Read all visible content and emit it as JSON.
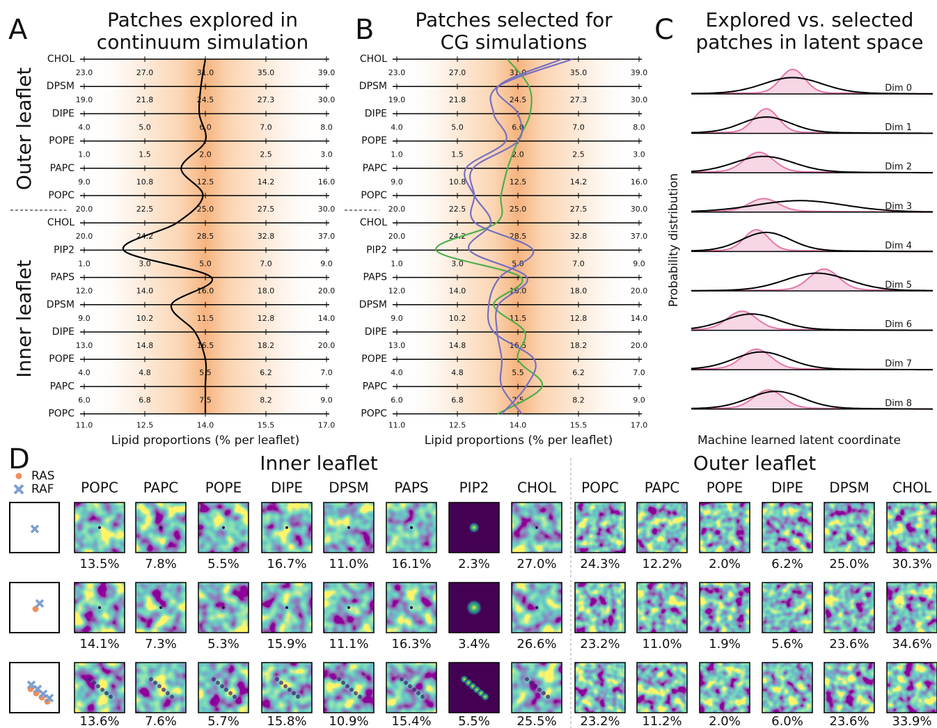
{
  "panel_a": {
    "letter": "A",
    "title": [
      "Patches explored in",
      "continuum simulation"
    ],
    "leaflets": [
      "Outer leaflet",
      "Inner leaflet"
    ],
    "xlabel": "Lipid proportions (% per leaflet)",
    "axes": [
      {
        "name": "CHOL",
        "lim": [
          23,
          39
        ],
        "ticks": [
          {
            "value": 23,
            "label": "23.0"
          },
          {
            "value": 27,
            "label": "27.0"
          },
          {
            "value": 31,
            "label": "31.0"
          },
          {
            "value": 35,
            "label": "35.0"
          },
          {
            "value": 39,
            "label": "39.0"
          }
        ]
      },
      {
        "name": "DPSM",
        "lim": [
          19,
          30
        ],
        "ticks": [
          {
            "value": 19,
            "label": "19.0"
          },
          {
            "value": 21.75,
            "label": "21.8"
          },
          {
            "value": 24.5,
            "label": "24.5"
          },
          {
            "value": 27.25,
            "label": "27.3"
          },
          {
            "value": 30,
            "label": "30.0"
          }
        ]
      },
      {
        "name": "DIPE",
        "lim": [
          4,
          8
        ],
        "ticks": [
          {
            "value": 4,
            "label": "4.0"
          },
          {
            "value": 5,
            "label": "5.0"
          },
          {
            "value": 6,
            "label": "6.0"
          },
          {
            "value": 7,
            "label": "7.0"
          },
          {
            "value": 8,
            "label": "8.0"
          }
        ]
      },
      {
        "name": "POPE",
        "lim": [
          1,
          3
        ],
        "ticks": [
          {
            "value": 1,
            "label": "1.0"
          },
          {
            "value": 1.5,
            "label": "1.5"
          },
          {
            "value": 2,
            "label": "2.0"
          },
          {
            "value": 2.5,
            "label": "2.5"
          },
          {
            "value": 3,
            "label": "3.0"
          }
        ]
      },
      {
        "name": "PAPC",
        "lim": [
          9,
          16
        ],
        "ticks": [
          {
            "value": 9,
            "label": "9.0"
          },
          {
            "value": 10.75,
            "label": "10.8"
          },
          {
            "value": 12.5,
            "label": "12.5"
          },
          {
            "value": 14.25,
            "label": "14.2"
          },
          {
            "value": 16,
            "label": "16.0"
          }
        ]
      },
      {
        "name": "POPC",
        "lim": [
          20,
          30
        ],
        "ticks": [
          {
            "value": 20,
            "label": "20.0"
          },
          {
            "value": 22.5,
            "label": "22.5"
          },
          {
            "value": 25,
            "label": "25.0"
          },
          {
            "value": 27.5,
            "label": "27.5"
          },
          {
            "value": 30,
            "label": "30.0"
          }
        ]
      },
      {
        "name": "CHOL",
        "lim": [
          20,
          37
        ],
        "ticks": [
          {
            "value": 20,
            "label": "20.0"
          },
          {
            "value": 24.25,
            "label": "24.2"
          },
          {
            "value": 28.5,
            "label": "28.5"
          },
          {
            "value": 32.75,
            "label": "32.8"
          },
          {
            "value": 37,
            "label": "37.0"
          }
        ]
      },
      {
        "name": "PIP2",
        "lim": [
          1,
          9
        ],
        "ticks": [
          {
            "value": 1,
            "label": "1.0"
          },
          {
            "value": 3,
            "label": "3.0"
          },
          {
            "value": 5,
            "label": "5.0"
          },
          {
            "value": 7,
            "label": "7.0"
          },
          {
            "value": 9,
            "label": "9.0"
          }
        ]
      },
      {
        "name": "PAPS",
        "lim": [
          12,
          20
        ],
        "ticks": [
          {
            "value": 12,
            "label": "12.0"
          },
          {
            "value": 14,
            "label": "14.0"
          },
          {
            "value": 16,
            "label": "16.0"
          },
          {
            "value": 18,
            "label": "18.0"
          },
          {
            "value": 20,
            "label": "20.0"
          }
        ]
      },
      {
        "name": "DPSM",
        "lim": [
          9,
          14
        ],
        "ticks": [
          {
            "value": 9,
            "label": "9.0"
          },
          {
            "value": 10.25,
            "label": "10.2"
          },
          {
            "value": 11.5,
            "label": "11.5"
          },
          {
            "value": 12.75,
            "label": "12.8"
          },
          {
            "value": 14,
            "label": "14.0"
          }
        ]
      },
      {
        "name": "DIPE",
        "lim": [
          13,
          20
        ],
        "ticks": [
          {
            "value": 13,
            "label": "13.0"
          },
          {
            "value": 14.75,
            "label": "14.8"
          },
          {
            "value": 16.5,
            "label": "16.5"
          },
          {
            "value": 18.25,
            "label": "18.2"
          },
          {
            "value": 20,
            "label": "20.0"
          }
        ]
      },
      {
        "name": "POPE",
        "lim": [
          4,
          7
        ],
        "ticks": [
          {
            "value": 4,
            "label": "4.0"
          },
          {
            "value": 4.75,
            "label": "4.8"
          },
          {
            "value": 5.5,
            "label": "5.5"
          },
          {
            "value": 6.25,
            "label": "6.2"
          },
          {
            "value": 7,
            "label": "7.0"
          }
        ]
      },
      {
        "name": "PAPC",
        "lim": [
          6,
          9
        ],
        "ticks": [
          {
            "value": 6,
            "label": "6.0"
          },
          {
            "value": 6.75,
            "label": "6.8"
          },
          {
            "value": 7.5,
            "label": "7.5"
          },
          {
            "value": 8.25,
            "label": "8.2"
          },
          {
            "value": 9,
            "label": "9.0"
          }
        ]
      },
      {
        "name": "POPC",
        "lim": [
          11,
          17
        ],
        "ticks": [
          {
            "value": 11,
            "label": "11.0"
          },
          {
            "value": 12.5,
            "label": "12.5"
          },
          {
            "value": 14,
            "label": "14.0"
          },
          {
            "value": 15.5,
            "label": "15.5"
          },
          {
            "value": 17,
            "label": "17.0"
          }
        ]
      }
    ],
    "series": [
      {
        "color": "#000000",
        "values": [
          31.0,
          24.3,
          5.9,
          2.0,
          11.8,
          24.9,
          26.5,
          2.3,
          16.2,
          10.8,
          16.2,
          5.5,
          7.5,
          14.0
        ]
      }
    ]
  },
  "panel_b": {
    "letter": "B",
    "title": [
      "Patches selected for",
      "CG simulations"
    ],
    "xlabel": "Lipid proportions (% per leaflet)",
    "axes": [
      {
        "name": "CHOL",
        "lim": [
          23,
          39
        ],
        "ticks": [
          {
            "value": 23,
            "label": "23.0"
          },
          {
            "value": 27,
            "label": "27.0"
          },
          {
            "value": 31,
            "label": "31.0"
          },
          {
            "value": 35,
            "label": "35.0"
          },
          {
            "value": 39,
            "label": "39.0"
          }
        ]
      },
      {
        "name": "DPSM",
        "lim": [
          19,
          30
        ],
        "ticks": [
          {
            "value": 19,
            "label": "19.0"
          },
          {
            "value": 21.75,
            "label": "21.8"
          },
          {
            "value": 24.5,
            "label": "24.5"
          },
          {
            "value": 27.25,
            "label": "27.3"
          },
          {
            "value": 30,
            "label": "30.0"
          }
        ]
      },
      {
        "name": "DIPE",
        "lim": [
          4,
          8
        ],
        "ticks": [
          {
            "value": 4,
            "label": "4.0"
          },
          {
            "value": 5,
            "label": "5.0"
          },
          {
            "value": 6,
            "label": "6.0"
          },
          {
            "value": 7,
            "label": "7.0"
          },
          {
            "value": 8,
            "label": "8.0"
          }
        ]
      },
      {
        "name": "POPE",
        "lim": [
          1,
          3
        ],
        "ticks": [
          {
            "value": 1,
            "label": "1.0"
          },
          {
            "value": 1.5,
            "label": "1.5"
          },
          {
            "value": 2,
            "label": "2.0"
          },
          {
            "value": 2.5,
            "label": "2.5"
          },
          {
            "value": 3,
            "label": "3.0"
          }
        ]
      },
      {
        "name": "PAPC",
        "lim": [
          9,
          16
        ],
        "ticks": [
          {
            "value": 9,
            "label": "9.0"
          },
          {
            "value": 10.75,
            "label": "10.8"
          },
          {
            "value": 12.5,
            "label": "12.5"
          },
          {
            "value": 14.25,
            "label": "14.2"
          },
          {
            "value": 16,
            "label": "16.0"
          }
        ]
      },
      {
        "name": "POPC",
        "lim": [
          20,
          30
        ],
        "ticks": [
          {
            "value": 20,
            "label": "20.0"
          },
          {
            "value": 22.5,
            "label": "22.5"
          },
          {
            "value": 25,
            "label": "25.0"
          },
          {
            "value": 27.5,
            "label": "27.5"
          },
          {
            "value": 30,
            "label": "30.0"
          }
        ]
      },
      {
        "name": "CHOL",
        "lim": [
          20,
          37
        ],
        "ticks": [
          {
            "value": 20,
            "label": "20.0"
          },
          {
            "value": 24.25,
            "label": "24.2"
          },
          {
            "value": 28.5,
            "label": "28.5"
          },
          {
            "value": 32.75,
            "label": "32.8"
          },
          {
            "value": 37,
            "label": "37.0"
          }
        ]
      },
      {
        "name": "PIP2",
        "lim": [
          1,
          9
        ],
        "ticks": [
          {
            "value": 1,
            "label": "1.0"
          },
          {
            "value": 3,
            "label": "3.0"
          },
          {
            "value": 5,
            "label": "5.0"
          },
          {
            "value": 7,
            "label": "7.0"
          },
          {
            "value": 9,
            "label": "9.0"
          }
        ]
      },
      {
        "name": "PAPS",
        "lim": [
          12,
          20
        ],
        "ticks": [
          {
            "value": 12,
            "label": "12.0"
          },
          {
            "value": 14,
            "label": "14.0"
          },
          {
            "value": 16,
            "label": "16.0"
          },
          {
            "value": 18,
            "label": "18.0"
          },
          {
            "value": 20,
            "label": "20.0"
          }
        ]
      },
      {
        "name": "DPSM",
        "lim": [
          9,
          14
        ],
        "ticks": [
          {
            "value": 9,
            "label": "9.0"
          },
          {
            "value": 10.25,
            "label": "10.2"
          },
          {
            "value": 11.5,
            "label": "11.5"
          },
          {
            "value": 12.75,
            "label": "12.8"
          },
          {
            "value": 14,
            "label": "14.0"
          }
        ]
      },
      {
        "name": "DIPE",
        "lim": [
          13,
          20
        ],
        "ticks": [
          {
            "value": 13,
            "label": "13.0"
          },
          {
            "value": 14.75,
            "label": "14.8"
          },
          {
            "value": 16.5,
            "label": "16.5"
          },
          {
            "value": 18.25,
            "label": "18.2"
          },
          {
            "value": 20,
            "label": "20.0"
          }
        ]
      },
      {
        "name": "POPE",
        "lim": [
          4,
          7
        ],
        "ticks": [
          {
            "value": 4,
            "label": "4.0"
          },
          {
            "value": 4.75,
            "label": "4.8"
          },
          {
            "value": 5.5,
            "label": "5.5"
          },
          {
            "value": 6.25,
            "label": "6.2"
          },
          {
            "value": 7,
            "label": "7.0"
          }
        ]
      },
      {
        "name": "PAPC",
        "lim": [
          6,
          9
        ],
        "ticks": [
          {
            "value": 6,
            "label": "6.0"
          },
          {
            "value": 6.75,
            "label": "6.8"
          },
          {
            "value": 7.5,
            "label": "7.5"
          },
          {
            "value": 8.25,
            "label": "8.2"
          },
          {
            "value": 9,
            "label": "9.0"
          }
        ]
      },
      {
        "name": "POPC",
        "lim": [
          11,
          17
        ],
        "ticks": [
          {
            "value": 11,
            "label": "11.0"
          },
          {
            "value": 12.5,
            "label": "12.5"
          },
          {
            "value": 14,
            "label": "14.0"
          },
          {
            "value": 15.5,
            "label": "15.5"
          },
          {
            "value": 17,
            "label": "17.0"
          }
        ]
      }
    ],
    "series": [
      {
        "color": "#4daf4a",
        "values": [
          30.3,
          25.0,
          6.2,
          2.0,
          12.2,
          24.3,
          27.0,
          2.3,
          16.1,
          11.0,
          16.7,
          5.5,
          7.8,
          13.5
        ]
      },
      {
        "color": "#7570c0",
        "values": [
          34.6,
          23.6,
          5.6,
          1.9,
          11.0,
          23.2,
          26.6,
          3.4,
          16.3,
          11.1,
          15.9,
          5.3,
          7.3,
          14.1
        ]
      },
      {
        "color": "#7570c0",
        "values": [
          33.9,
          23.6,
          6.0,
          2.0,
          11.2,
          23.2,
          25.5,
          5.5,
          15.4,
          10.9,
          15.8,
          5.7,
          7.6,
          13.6
        ]
      }
    ]
  },
  "panel_c": {
    "letter": "C",
    "title": [
      "Explored vs. selected",
      "patches in latent space"
    ],
    "ylabel": "Probability distribution",
    "xlabel": "Machine learned latent coordinate",
    "dims": [
      "Dim 0",
      "Dim 1",
      "Dim 2",
      "Dim 3",
      "Dim 4",
      "Dim 5",
      "Dim 6",
      "Dim 7",
      "Dim 8"
    ],
    "explored_color": "#000000",
    "selected_color": "#e377a8"
  },
  "panel_d": {
    "letter": "D",
    "legend": [
      {
        "name": "RAS",
        "color": "#f28e5b"
      },
      {
        "name": "RAF",
        "color": "#7b9fd1"
      }
    ],
    "groups": [
      {
        "title": "Inner leaflet",
        "columns": [
          "POPC",
          "PAPC",
          "POPE",
          "DIPE",
          "DPSM",
          "PAPS",
          "PIP2",
          "CHOL"
        ]
      },
      {
        "title": "Outer leaflet",
        "columns": [
          "POPC",
          "PAPC",
          "POPE",
          "DIPE",
          "DPSM",
          "CHOL"
        ]
      }
    ],
    "rows": [
      [
        [
          "13.5%",
          "7.8%",
          "5.5%",
          "16.7%",
          "11.0%",
          "16.1%",
          "2.3%",
          "27.0%"
        ],
        [
          "24.3%",
          "12.2%",
          "2.0%",
          "6.2%",
          "25.0%",
          "30.3%"
        ]
      ],
      [
        [
          "14.1%",
          "7.3%",
          "5.3%",
          "15.9%",
          "11.1%",
          "16.3%",
          "3.4%",
          "26.6%"
        ],
        [
          "23.2%",
          "11.0%",
          "1.9%",
          "5.6%",
          "23.6%",
          "34.6%"
        ]
      ],
      [
        [
          "13.6%",
          "7.6%",
          "5.7%",
          "15.8%",
          "10.9%",
          "15.4%",
          "5.5%",
          "25.5%"
        ],
        [
          "23.2%",
          "11.2%",
          "2.0%",
          "6.0%",
          "23.6%",
          "33.9%"
        ]
      ]
    ]
  }
}
